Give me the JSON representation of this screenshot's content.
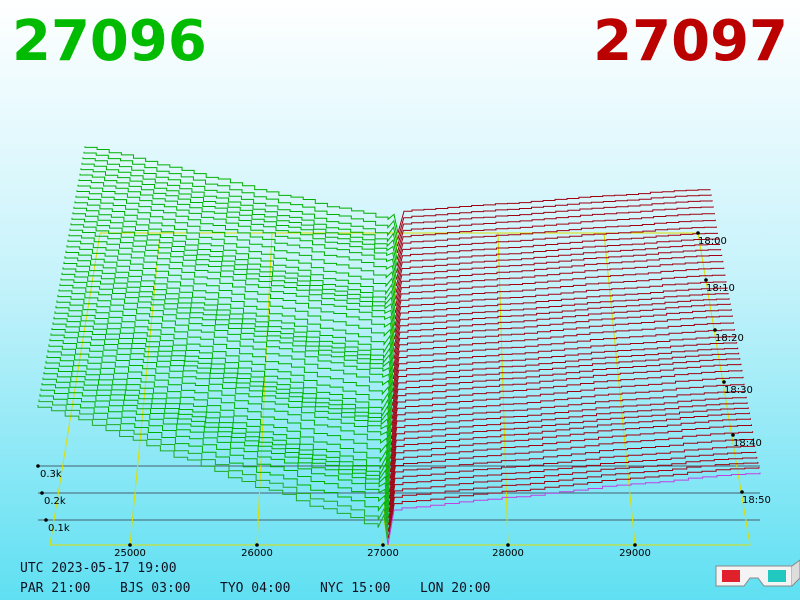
{
  "header": {
    "bid": "27096",
    "ask": "27097"
  },
  "price_axis": [
    "25000",
    "26000",
    "27000",
    "28000",
    "29000"
  ],
  "depth_axis": [
    "0.3k",
    "0.2k",
    "0.1k"
  ],
  "time_axis": [
    "18:00",
    "18:10",
    "18:20",
    "18:30",
    "18:40",
    "18:50"
  ],
  "footer": {
    "utc": "UTC 2023-05-17 19:00",
    "clocks": [
      "PAR 21:00",
      "BJS 03:00",
      "TYO 04:00",
      "NYC 15:00",
      "LON 20:00"
    ]
  }
}
